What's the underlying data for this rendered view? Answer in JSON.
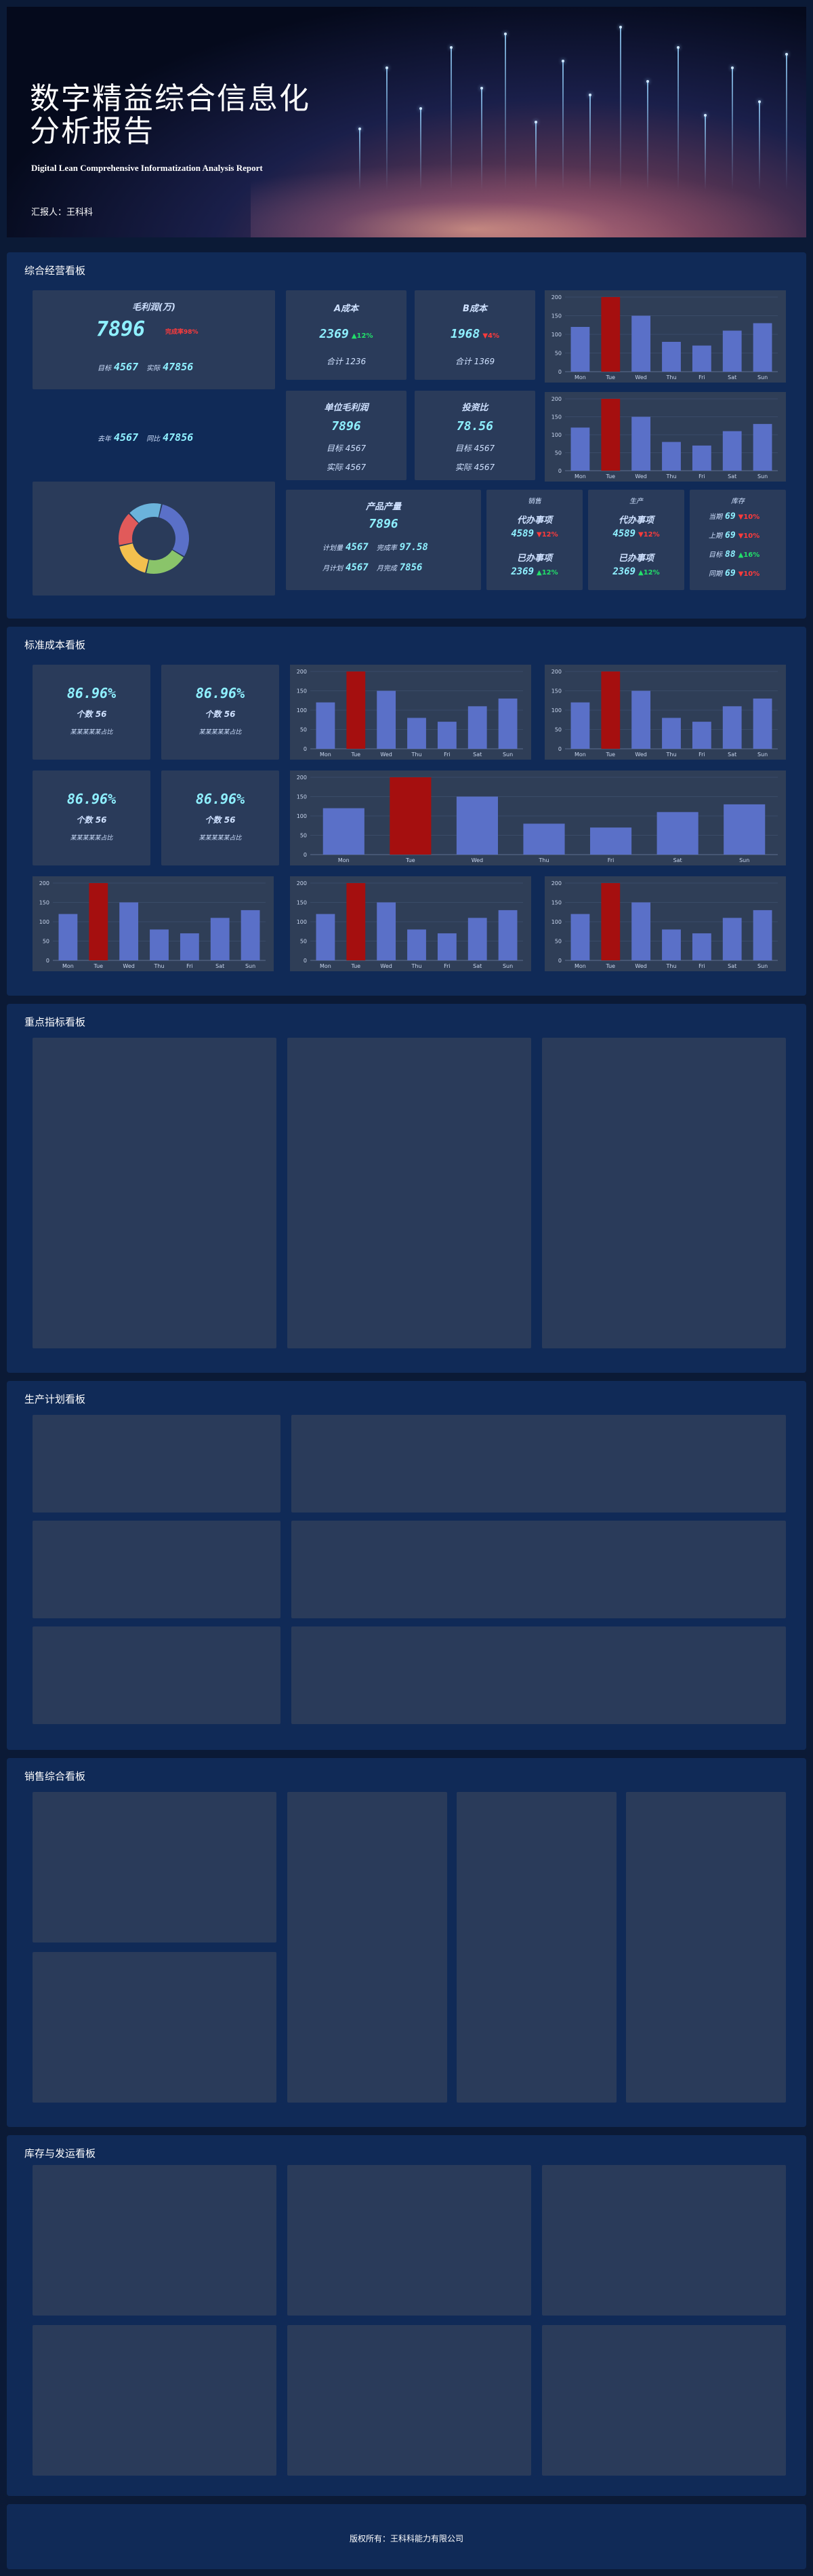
{
  "hero": {
    "title_line1": "数字精益综合信息化",
    "title_line2": "分析报告",
    "subtitle": "Digital Lean Comprehensive Informatization Analysis Report",
    "author": "汇报人：王科科"
  },
  "sections": {
    "s1": "综合经营看板",
    "s2": "标准成本看板",
    "s3": "重点指标看板",
    "s4": "生产计划看板",
    "s5": "销售综合看板",
    "s6": "库存与发运看板"
  },
  "board1": {
    "profit": {
      "label": "毛利润(万)",
      "value": "7896",
      "badge": "完成率98%",
      "r1_l": "目标",
      "r1_v": "4567",
      "r1_l2": "实际",
      "r1_v2": "47856",
      "r2_l": "去年",
      "r2_v": "4567",
      "r2_l2": "同比",
      "r2_v2": "47856"
    },
    "a_cost": {
      "label": "A成本",
      "value": "2369",
      "delta": "▲12%",
      "sub": "合计 1236"
    },
    "b_cost": {
      "label": "B成本",
      "value": "1968",
      "delta": "▼4%",
      "sub": "合计 1369"
    },
    "unit_profit": {
      "label": "单位毛利润",
      "value": "7896",
      "r1": "目标 4567",
      "r2": "实际 4567"
    },
    "investment": {
      "label": "投资比",
      "value": "78.56",
      "r1": "目标 4567",
      "r2": "实际 4567"
    },
    "output": {
      "label": "产品产量",
      "value": "7896",
      "r1_l": "计划量",
      "r1_v": "4567",
      "r1_l2": "完成率",
      "r1_v2": "97.58",
      "r2_l": "月计划",
      "r2_v": "4567",
      "r2_l2": "月完成",
      "r2_v2": "7856"
    },
    "sales": {
      "label": "销售",
      "t1": "代办事项",
      "v1": "4589",
      "d1": "▼12%",
      "t2": "已办事项",
      "v2": "2369",
      "d2": "▲12%"
    },
    "production": {
      "label": "生产",
      "t1": "代办事项",
      "v1": "4589",
      "d1": "▼12%",
      "t2": "已办事项",
      "v2": "2369",
      "d2": "▲12%"
    },
    "inventory": {
      "label": "库存",
      "rows": [
        {
          "l": "当期",
          "v": "69",
          "d": "▼10%"
        },
        {
          "l": "上期",
          "v": "69",
          "d": "▼10%"
        },
        {
          "l": "目标",
          "v": "88",
          "d": "▲16%"
        },
        {
          "l": "同期",
          "v": "69",
          "d": "▼10%"
        }
      ]
    }
  },
  "board2": {
    "kpis": [
      {
        "value": "86.96%",
        "sub": "个数 56",
        "foot": "某某某某某占比"
      },
      {
        "value": "86.96%",
        "sub": "个数 56",
        "foot": "某某某某某占比"
      },
      {
        "value": "86.96%",
        "sub": "个数 56",
        "foot": "某某某某某占比"
      },
      {
        "value": "86.96%",
        "sub": "个数 56",
        "foot": "某某某某某占比"
      }
    ]
  },
  "chart_data": {
    "type": "bar",
    "categories": [
      "Mon",
      "Tue",
      "Wed",
      "Thu",
      "Fri",
      "Sat",
      "Sun"
    ],
    "values": [
      120,
      200,
      150,
      80,
      70,
      110,
      130
    ],
    "highlight_index": 1,
    "ylim": [
      0,
      200
    ],
    "yticks": [
      "0",
      "50",
      "100",
      "150",
      "200"
    ],
    "colors": {
      "bar": "#5a70c8",
      "highlight": "#a50f0f"
    }
  },
  "donut": {
    "segments": [
      {
        "value": 30,
        "color": "#5a70c8"
      },
      {
        "value": 20,
        "color": "#8ac46a"
      },
      {
        "value": 18,
        "color": "#f3c04e"
      },
      {
        "value": 16,
        "color": "#e15a5a"
      },
      {
        "value": 16,
        "color": "#6bb3db"
      }
    ]
  },
  "footer": {
    "text": "版权所有：王科科能力有限公司"
  },
  "colors": {
    "section_bg": "#102a57",
    "panel_bg": "#2a3b5a",
    "accent": "#8ff0ff"
  }
}
